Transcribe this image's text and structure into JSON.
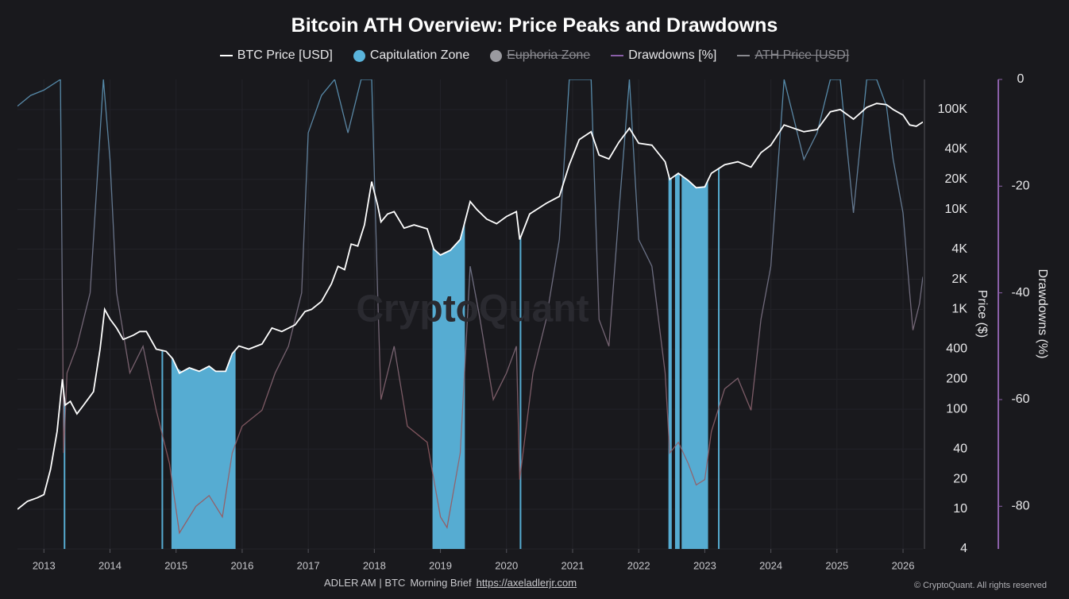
{
  "chart_data": {
    "type": "line",
    "title": "Bitcoin ATH Overview: Price Peaks and Drawdowns",
    "watermark": "CryptoQuant",
    "footer": {
      "left": "ADLER AM | BTC",
      "middle": "Morning Brief",
      "link": "https://axeladlerjr.com",
      "right": "© CryptoQuant. All rights reserved"
    },
    "x_label_note": null,
    "xlim": [
      2012.6,
      2026.3
    ],
    "xticks": [
      2013,
      2014,
      2015,
      2016,
      2017,
      2018,
      2019,
      2020,
      2021,
      2022,
      2023,
      2024,
      2025,
      2026
    ],
    "ylabel": "Price ($)",
    "log_y": true,
    "ylim": [
      4,
      200000
    ],
    "yticks": [
      4,
      10,
      20,
      40,
      100,
      200,
      400,
      {
        "value": 1000,
        "label": "1K"
      },
      {
        "value": 2000,
        "label": "2K"
      },
      {
        "value": 4000,
        "label": "4K"
      },
      {
        "value": 10000,
        "label": "10K"
      },
      {
        "value": 20000,
        "label": "20K"
      },
      {
        "value": 40000,
        "label": "40K"
      },
      {
        "value": 100000,
        "label": "100K"
      }
    ],
    "y2label": "Drawdowns (%)",
    "y2lim": [
      -88,
      0
    ],
    "y2ticks": [
      0,
      -20,
      -40,
      -60,
      -80
    ],
    "grid": true,
    "legend": "top",
    "series": [
      {
        "name": "BTC Price [USD]",
        "kind": "line",
        "color": "#ffffff",
        "x": [
          2012.6,
          2012.75,
          2012.9,
          2013.0,
          2013.1,
          2013.2,
          2013.28,
          2013.32,
          2013.4,
          2013.5,
          2013.6,
          2013.75,
          2013.85,
          2013.92,
          2014.0,
          2014.1,
          2014.2,
          2014.35,
          2014.45,
          2014.55,
          2014.7,
          2014.85,
          2014.95,
          2015.05,
          2015.2,
          2015.35,
          2015.5,
          2015.6,
          2015.75,
          2015.85,
          2015.95,
          2016.1,
          2016.3,
          2016.45,
          2016.6,
          2016.8,
          2016.95,
          2017.05,
          2017.2,
          2017.35,
          2017.45,
          2017.55,
          2017.65,
          2017.75,
          2017.85,
          2017.96,
          2018.05,
          2018.1,
          2018.2,
          2018.3,
          2018.45,
          2018.6,
          2018.8,
          2018.9,
          2019.0,
          2019.15,
          2019.3,
          2019.45,
          2019.55,
          2019.7,
          2019.85,
          2020.0,
          2020.15,
          2020.2,
          2020.35,
          2020.6,
          2020.8,
          2020.95,
          2021.1,
          2021.28,
          2021.4,
          2021.55,
          2021.7,
          2021.86,
          2022.0,
          2022.2,
          2022.4,
          2022.47,
          2022.6,
          2022.75,
          2022.87,
          2023.0,
          2023.1,
          2023.3,
          2023.5,
          2023.7,
          2023.85,
          2024.0,
          2024.2,
          2024.5,
          2024.7,
          2024.9,
          2025.05,
          2025.25,
          2025.45,
          2025.6,
          2025.75,
          2025.85,
          2026.0,
          2026.1,
          2026.2,
          2026.3
        ],
        "values": [
          10,
          12,
          13,
          14,
          25,
          60,
          200,
          110,
          120,
          90,
          110,
          150,
          400,
          1000,
          800,
          650,
          500,
          550,
          600,
          600,
          400,
          380,
          320,
          230,
          260,
          240,
          270,
          240,
          240,
          360,
          430,
          400,
          450,
          650,
          600,
          700,
          950,
          1000,
          1200,
          1800,
          2700,
          2500,
          4500,
          4300,
          7000,
          19000,
          11000,
          7500,
          9000,
          9500,
          6500,
          7000,
          6400,
          4000,
          3500,
          3900,
          5000,
          12000,
          10000,
          8000,
          7200,
          8500,
          9500,
          5000,
          9000,
          11500,
          13500,
          28000,
          50000,
          60000,
          35000,
          32000,
          47000,
          65000,
          46000,
          44000,
          30000,
          20000,
          23000,
          19500,
          16500,
          16800,
          23000,
          28000,
          30000,
          26500,
          37000,
          44000,
          70000,
          60000,
          63000,
          95000,
          100000,
          80000,
          105000,
          115000,
          112000,
          100000,
          88000,
          70000,
          68000,
          75000
        ]
      },
      {
        "name": "Capitulation Zone",
        "kind": "zones",
        "color": "#5ab4dc",
        "ranges": [
          [
            2013.3,
            2013.31
          ],
          [
            2014.78,
            2014.8
          ],
          [
            2014.93,
            2015.9
          ],
          [
            2018.88,
            2019.37
          ],
          [
            2020.2,
            2020.21
          ],
          [
            2022.45,
            2022.5
          ],
          [
            2022.55,
            2022.62
          ],
          [
            2022.65,
            2023.05
          ],
          [
            2023.2,
            2023.21
          ]
        ]
      },
      {
        "name": "Euphoria Zone",
        "kind": "zones",
        "color": "#9a9aa0",
        "hidden": true
      },
      {
        "name": "Drawdowns [%]",
        "kind": "line",
        "axis": "y2",
        "color": "#8a5fa8",
        "gradient": [
          "#5f9fc4",
          "#a34b4b"
        ],
        "x": [
          2012.6,
          2012.8,
          2013.0,
          2013.25,
          2013.3,
          2013.35,
          2013.5,
          2013.7,
          2013.9,
          2014.0,
          2014.1,
          2014.3,
          2014.5,
          2014.7,
          2014.9,
          2015.05,
          2015.3,
          2015.5,
          2015.7,
          2015.85,
          2016.0,
          2016.3,
          2016.5,
          2016.7,
          2016.9,
          2017.0,
          2017.2,
          2017.4,
          2017.6,
          2017.8,
          2017.96,
          2018.05,
          2018.1,
          2018.3,
          2018.5,
          2018.8,
          2019.0,
          2019.1,
          2019.3,
          2019.45,
          2019.6,
          2019.8,
          2020.0,
          2020.15,
          2020.2,
          2020.4,
          2020.6,
          2020.8,
          2020.95,
          2021.1,
          2021.28,
          2021.4,
          2021.55,
          2021.7,
          2021.86,
          2022.0,
          2022.2,
          2022.4,
          2022.47,
          2022.6,
          2022.75,
          2022.87,
          2023.0,
          2023.1,
          2023.3,
          2023.5,
          2023.7,
          2023.85,
          2024.0,
          2024.2,
          2024.5,
          2024.7,
          2024.9,
          2025.05,
          2025.25,
          2025.45,
          2025.6,
          2025.75,
          2025.85,
          2026.0,
          2026.1,
          2026.15,
          2026.25,
          2026.3
        ],
        "values": [
          -5,
          -3,
          -2,
          0,
          -70,
          -55,
          -50,
          -40,
          0,
          -15,
          -40,
          -55,
          -50,
          -62,
          -72,
          -85,
          -80,
          -78,
          -82,
          -70,
          -65,
          -62,
          -55,
          -50,
          -40,
          -10,
          -3,
          0,
          -10,
          0,
          0,
          -40,
          -60,
          -50,
          -65,
          -68,
          -82,
          -84,
          -70,
          -35,
          -45,
          -60,
          -55,
          -50,
          -75,
          -55,
          -45,
          -30,
          0,
          0,
          0,
          -45,
          -50,
          -25,
          0,
          -30,
          -35,
          -55,
          -70,
          -68,
          -72,
          -76,
          -75,
          -66,
          -58,
          -56,
          -62,
          -45,
          -35,
          0,
          -15,
          -10,
          0,
          0,
          -25,
          0,
          0,
          -5,
          -15,
          -25,
          -40,
          -47,
          -42,
          -37
        ]
      },
      {
        "name": "ATH Price [USD]",
        "kind": "line",
        "color": "#8a8a90",
        "hidden": true
      }
    ]
  }
}
